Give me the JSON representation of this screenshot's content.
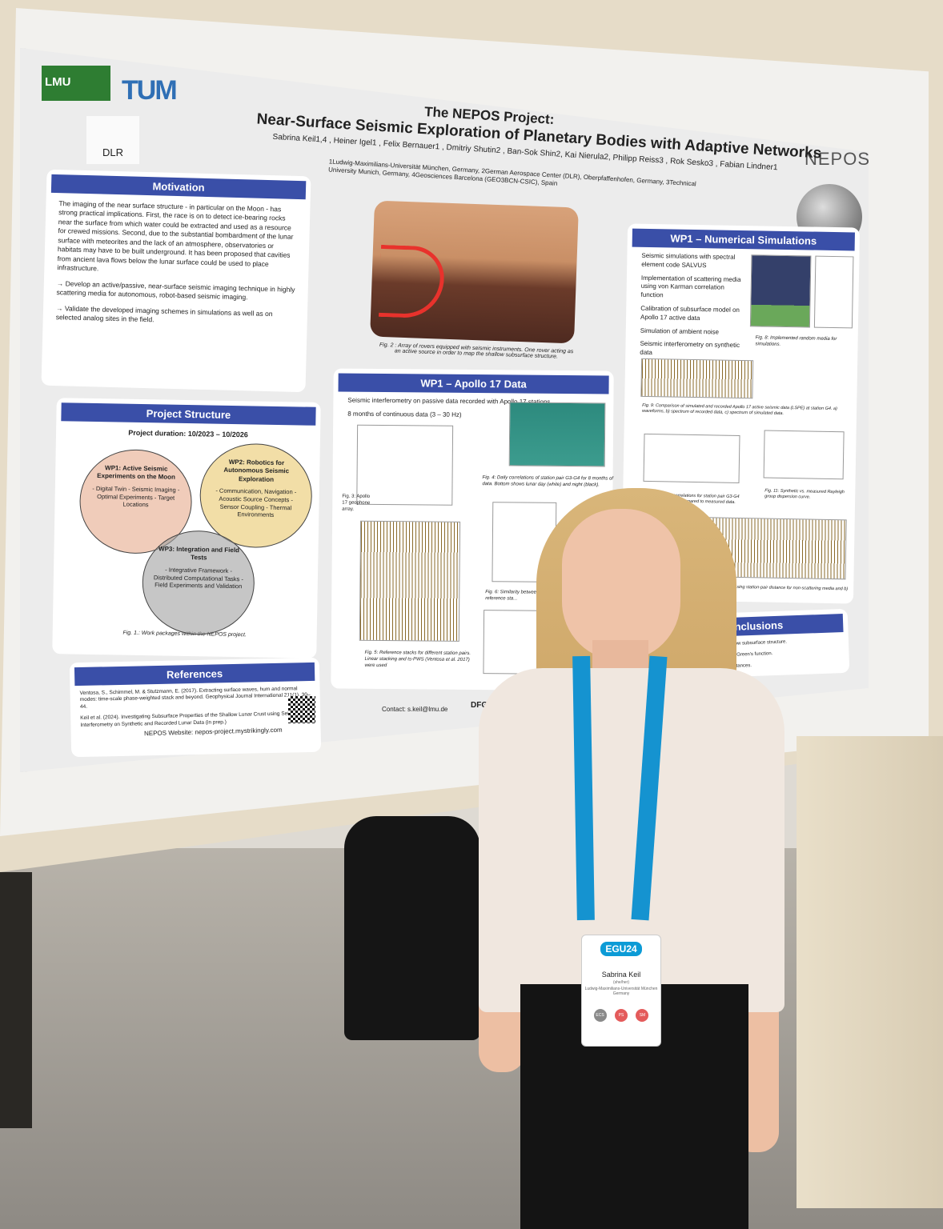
{
  "poster": {
    "logos": {
      "lmu": "LMU",
      "tum": "TUM",
      "dlr": "DLR",
      "nepos": "NEPOS"
    },
    "title": "The NEPOS Project:",
    "subtitle": "Near-Surface Seismic Exploration of Planetary Bodies with Adaptive Networks",
    "authors": "Sabrina Keil1,4 , Heiner Igel1 , Felix Bernauer1 , Dmitriy Shutin2 , Ban-Sok Shin2, Kai Nierula2, Philipp Reiss3 , Rok Sesko3 , Fabian Lindner1",
    "affiliations": "1Ludwig-Maximilians-Universität München, Germany, 2German Aerospace Center (DLR), Oberpfaffenhofen, Germany, 3Technical University Munich, Germany, 4Geosciences Barcelona (GEO3BCN-CSIC), Spain",
    "motivation": {
      "heading": "Motivation",
      "para1": "The imaging of the near surface structure - in particular on the Moon - has strong practical implications. First, the race is on to detect ice-bearing rocks near the surface from which water could be extracted and used as a resource for crewed missions. Second, due to the substantial bombardment of the lunar surface with meteorites and the lack of an atmosphere, observatories or habitats may have to be built underground. It has been proposed that cavities from ancient lava flows below the lunar surface could be used to place infrastructure.",
      "para2": "→ Develop an active/passive, near-surface seismic imaging technique in highly scattering media for autonomous, robot-based seismic imaging.",
      "para3": "→ Validate the developed imaging schemes in simulations as well as on selected analog sites in the field."
    },
    "structure": {
      "heading": "Project Structure",
      "duration": "Project duration: 10/2023 – 10/2026",
      "wp1_title": "WP1: Active Seismic Experiments on the Moon",
      "wp1_items": "- Digital Twin - Seismic Imaging - Optimal Experiments - Target Locations",
      "wp2_title": "WP2: Robotics for Autonomous Seismic Exploration",
      "wp2_items": "- Communication, Navigation - Acoustic Source Concepts - Sensor Coupling - Thermal Environments",
      "wp3_title": "WP3: Integration and Field Tests",
      "wp3_items": "- Integrative Framework - Distributed Computational Tasks - Field Experiments and Validation",
      "caption": "Fig. 1.: Work packages within the NEPOS project."
    },
    "references": {
      "heading": "References",
      "ref1": "Ventosa, S., Schimmel, M. & Stutzmann, E. (2017). Extracting surface waves, hum and normal modes: time-scale phase-weighted stack and beyond. Geophysical Journal International 211(1), 30–44.",
      "ref2": "Keil et al. (2024). Investigating Subsurface Properties of the Shallow Lunar Crust using Seismic Interferometry on Synthetic and Recorded Lunar Data (in prep.)",
      "website": "NEPOS Website: nepos-project.mystrikingly.com"
    },
    "fig2_caption": "Fig. 2 : Array of rovers equipped with seismic instruments. One rover acting as an active source in order to map the shallow subsurface structure.",
    "apollo": {
      "heading": "WP1 – Apollo 17 Data",
      "bullet1": "Seismic interferometry on passive data recorded with Apollo 17 stations",
      "bullet2": "8 months of continuous data (3 – 30 Hz)",
      "fig3": "Fig. 3: Apollo 17 geophone array.",
      "fig4": "Fig. 4: Daily correlations of station pair G3-G4 for 8 months of data. Bottom shows lunar day (white) and night (black).",
      "fig5": "Fig. 5: Reference stacks for different station pairs. Linear stacking and ts-PWS (Ventosa et al. 2017) were used",
      "fig6": "Fig. 6: Similarity between days and reference sta..."
    },
    "numerical": {
      "heading": "WP1 – Numerical Simulations",
      "b1": "Seismic simulations with spectral element code SALVUS",
      "b2": "Implementation of scattering media using von Karman correlation function",
      "b3": "Calibration of subsurface model on Apollo 17 active data",
      "b4": "Simulation of ambient noise",
      "b5": "Seismic interferometry on synthetic data",
      "fig8": "Fig. 8: Implemented random media for simulations.",
      "fig9": "Fig. 9: Comparison of simulated and recorded Apollo 17 active seismic data (LSPE) at station G4. a) waveforms, b) spectrum of recorded data, c) spectrum of simulated data.",
      "fig10": "10: Stacked correlations for station pair G3-G4 simulation runs compared to measured data.",
      "fig11": "Fig. 11: Synthetic vs. measured Rayleigh group dispersion curve.",
      "fig12": "Correlated signals with increasing station-pair distance for non-scattering media and b) scattering media."
    },
    "conclusions": {
      "heading": "Conclusions",
      "l1": "Lunar data to investigate shallow subsurface structure.",
      "l2": "is needed to retrieve empirical Green's function.",
      "l3": "especially for larger station distances."
    },
    "contact": "Contact: s.keil@lmu.de",
    "funder": "DFG"
  },
  "badge": {
    "event": "EGU24",
    "name": "Sabrina Keil",
    "role": "(she/her)",
    "org": "Ludwig-Maximilians-Universität München Germany",
    "tags": [
      "ECS",
      "PS",
      "SM"
    ]
  }
}
